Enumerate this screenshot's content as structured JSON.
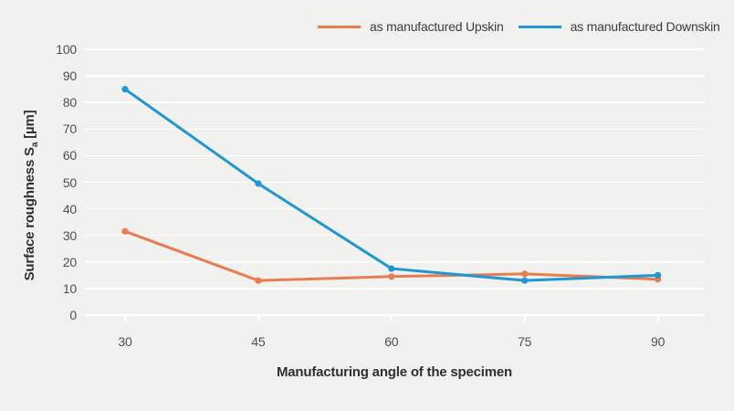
{
  "colors": {
    "background": "#f1f1ef",
    "grid": "#ffffff",
    "upskin": "#e87c4f",
    "downskin": "#1f97d4",
    "tick_text": "#4f4f4e",
    "title_text": "#2f2f2e"
  },
  "legend": {
    "items": [
      {
        "label": "as manufactured Upskin",
        "color": "#e87c4f"
      },
      {
        "label": "as manufactured Downskin",
        "color": "#1f97d4"
      }
    ]
  },
  "axis_titles": {
    "x": "Manufacturing angle of the specimen",
    "y_prefix": "Surface roughness S",
    "y_sub": "a",
    "y_suffix": " [µm]"
  },
  "chart_data": {
    "type": "line",
    "x": [
      30,
      45,
      60,
      75,
      90
    ],
    "series": [
      {
        "name": "as manufactured Upskin",
        "color": "#e87c4f",
        "values": [
          31.5,
          13,
          14.5,
          15.5,
          13.5
        ]
      },
      {
        "name": "as manufactured Downskin",
        "color": "#1f97d4",
        "values": [
          85,
          49.5,
          17.5,
          13,
          15
        ]
      }
    ],
    "title": "",
    "xlabel": "Manufacturing angle of the specimen",
    "ylabel": "Surface roughness Sa [µm]",
    "ylim": [
      0,
      100
    ],
    "yticks": [
      0,
      10,
      20,
      30,
      40,
      50,
      60,
      70,
      80,
      90,
      100
    ],
    "xticks": [
      30,
      45,
      60,
      75,
      90
    ],
    "grid": "horizontal-only, white lines on light grey background",
    "legend_position": "top",
    "markers": "circle"
  }
}
